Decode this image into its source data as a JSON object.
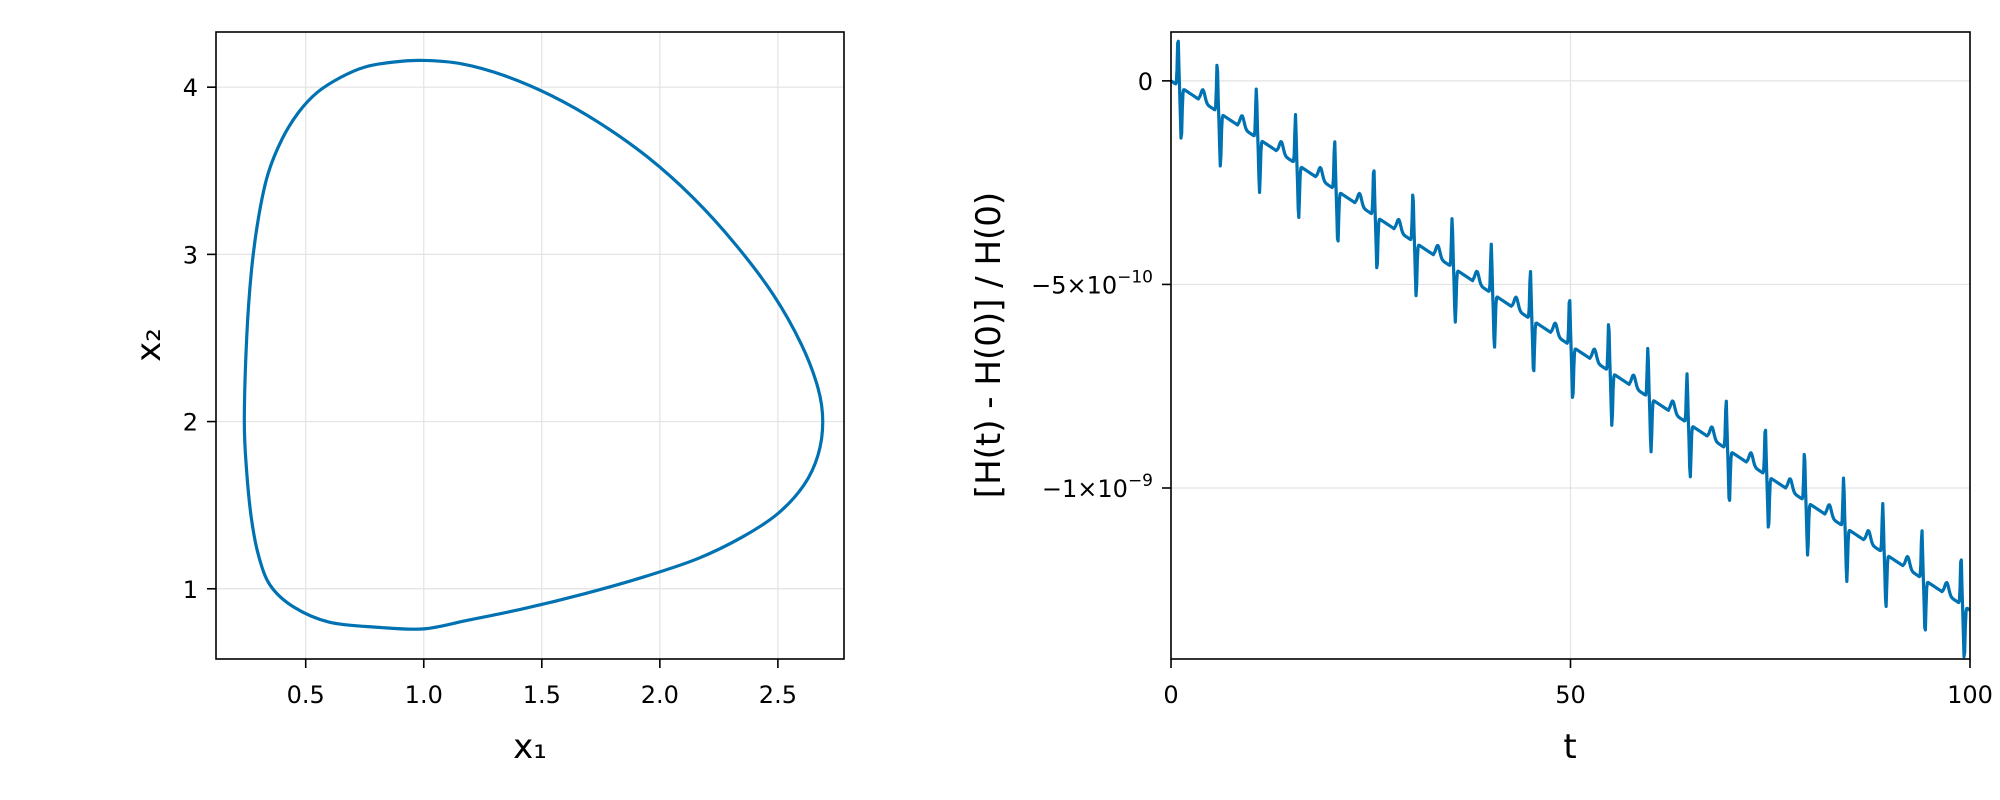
{
  "colors": {
    "series": "#0072b2",
    "grid": "#e3e3e3",
    "frame": "#000000"
  },
  "chart_data": [
    {
      "type": "line",
      "xlabel": "x₁",
      "ylabel": "x₂",
      "xlim": [
        0.12,
        2.78
      ],
      "ylim": [
        0.58,
        4.33
      ],
      "xticks": [
        0.5,
        1.0,
        1.5,
        2.0,
        2.5
      ],
      "xtick_labels": [
        "0.5",
        "1.0",
        "1.5",
        "2.0",
        "2.5"
      ],
      "yticks": [
        1,
        2,
        3,
        4
      ],
      "ytick_labels": [
        "1",
        "2",
        "3",
        "4"
      ],
      "grid": true,
      "series": [
        {
          "x": [
            0.24,
            0.25,
            0.27,
            0.3,
            0.34,
            0.4,
            0.47,
            0.55,
            0.65,
            0.75,
            0.87,
            1.0,
            1.16,
            1.34,
            1.54,
            1.74,
            1.95,
            2.14,
            2.32,
            2.48,
            2.6,
            2.67,
            2.69,
            2.67,
            2.61,
            2.5,
            2.35,
            2.16,
            1.93,
            1.68,
            1.42,
            1.18,
            1.0,
            0.8,
            0.6,
            0.45,
            0.35,
            0.3,
            0.27,
            0.25,
            0.24
          ],
          "y": [
            2.0,
            2.5,
            2.9,
            3.22,
            3.48,
            3.69,
            3.85,
            3.97,
            4.06,
            4.12,
            4.15,
            4.16,
            4.14,
            4.07,
            3.95,
            3.79,
            3.58,
            3.34,
            3.06,
            2.76,
            2.46,
            2.2,
            2.0,
            1.8,
            1.62,
            1.45,
            1.31,
            1.18,
            1.07,
            0.97,
            0.88,
            0.81,
            0.76,
            0.77,
            0.8,
            0.89,
            1.02,
            1.2,
            1.42,
            1.7,
            2.0
          ]
        }
      ]
    },
    {
      "type": "line",
      "xlabel": "t",
      "ylabel": "[H(t) - H(0)] / H(0)",
      "xlim": [
        0,
        100
      ],
      "ylim": [
        -1.42e-09,
        1.2e-10
      ],
      "xticks": [
        0,
        50,
        100
      ],
      "xtick_labels": [
        "0",
        "50",
        "100"
      ],
      "yticks": [
        0,
        -5e-10,
        -1e-09
      ],
      "ytick_labels": [
        {
          "base": "0",
          "exp": ""
        },
        {
          "base": "−5×10",
          "exp": "−10"
        },
        {
          "base": "−1×10",
          "exp": "−9"
        }
      ],
      "grid": true,
      "series": [
        {
          "spike_period": 4.9,
          "spike_phase": 1.0,
          "drift_per_unit_t": -1.3e-11,
          "spike_amplitude": 1.2e-10,
          "dip_amplitude": 1.3e-10,
          "points": 1200
        }
      ]
    }
  ]
}
